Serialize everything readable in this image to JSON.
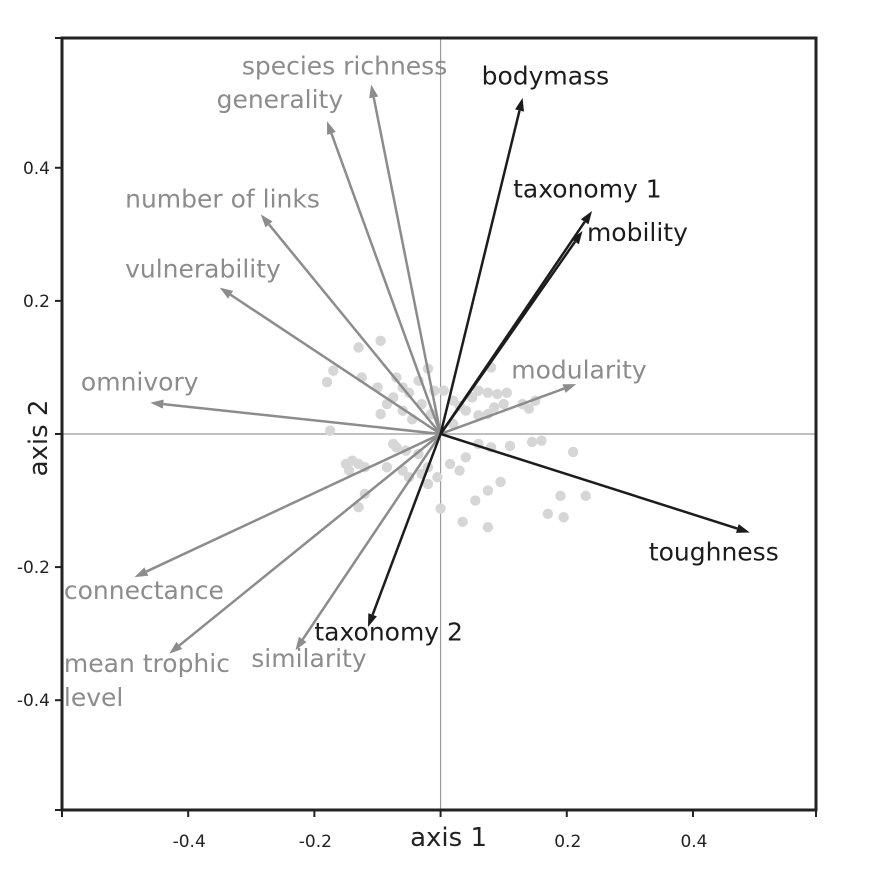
{
  "chart_data": {
    "type": "scatter",
    "xlabel": "axis 1",
    "ylabel": "axis 2",
    "xlim": [
      -0.6,
      0.595
    ],
    "ylim": [
      -0.565,
      0.595
    ],
    "xticks": [
      {
        "value": -0.4,
        "label": "-0.4"
      },
      {
        "value": -0.2,
        "label": "-0.2"
      },
      {
        "value": 0.2,
        "label": "0.2"
      },
      {
        "value": 0.4,
        "label": "0.4"
      }
    ],
    "yticks": [
      {
        "value": 0.4,
        "label": "0.4"
      },
      {
        "value": 0.2,
        "label": "0.2"
      },
      {
        "value": -0.2,
        "label": "-0.2"
      },
      {
        "value": -0.4,
        "label": "-0.4"
      }
    ],
    "colors": {
      "dark_vector": "#1c1c1c",
      "light_vector": "#8c8c8c",
      "points": "#d6d6d6",
      "origin_lines": "#9a9a9a",
      "frame": "#222222"
    },
    "vectors": [
      {
        "name": "bodymass",
        "x": 0.13,
        "y": 0.505,
        "tone": "dark",
        "label_lines": [
          "bodymass"
        ],
        "label_pos": [
          0.065,
          0.525
        ],
        "anchor": "start"
      },
      {
        "name": "taxonomy 1",
        "x": 0.24,
        "y": 0.335,
        "tone": "dark",
        "label_lines": [
          "taxonomy 1"
        ],
        "label_pos": [
          0.115,
          0.355
        ],
        "anchor": "start"
      },
      {
        "name": "mobility",
        "x": 0.225,
        "y": 0.305,
        "tone": "dark",
        "label_lines": [
          "mobility"
        ],
        "label_pos": [
          0.232,
          0.29
        ],
        "anchor": "start"
      },
      {
        "name": "toughness",
        "x": 0.49,
        "y": -0.148,
        "tone": "dark",
        "label_lines": [
          "toughness"
        ],
        "label_pos": [
          0.33,
          -0.19
        ],
        "anchor": "start"
      },
      {
        "name": "taxonomy 2",
        "x": -0.115,
        "y": -0.29,
        "tone": "dark",
        "label_lines": [
          "taxonomy 2"
        ],
        "label_pos": [
          -0.2,
          -0.31
        ],
        "anchor": "start"
      },
      {
        "name": "species richness",
        "x": -0.11,
        "y": 0.525,
        "tone": "light",
        "label_lines": [
          "species richness"
        ],
        "label_pos": [
          -0.315,
          0.54
        ],
        "anchor": "start"
      },
      {
        "name": "generality",
        "x": -0.18,
        "y": 0.47,
        "tone": "light",
        "label_lines": [
          "generality"
        ],
        "label_pos": [
          -0.355,
          0.49
        ],
        "anchor": "start"
      },
      {
        "name": "number of links",
        "x": -0.285,
        "y": 0.33,
        "tone": "light",
        "label_lines": [
          "number of links"
        ],
        "label_pos": [
          -0.5,
          0.34
        ],
        "anchor": "start"
      },
      {
        "name": "vulnerability",
        "x": -0.35,
        "y": 0.22,
        "tone": "light",
        "label_lines": [
          "vulnerability"
        ],
        "label_pos": [
          -0.5,
          0.235
        ],
        "anchor": "start"
      },
      {
        "name": "omnivory",
        "x": -0.46,
        "y": 0.047,
        "tone": "light",
        "label_lines": [
          "omnivory"
        ],
        "label_pos": [
          -0.57,
          0.065
        ],
        "anchor": "start"
      },
      {
        "name": "modularity",
        "x": 0.215,
        "y": 0.075,
        "tone": "light",
        "label_lines": [
          "modularity"
        ],
        "label_pos": [
          0.112,
          0.083
        ],
        "anchor": "start"
      },
      {
        "name": "connectance",
        "x": -0.485,
        "y": -0.215,
        "tone": "light",
        "label_lines": [
          "connectance"
        ],
        "label_pos": [
          -0.597,
          -0.248
        ],
        "anchor": "start"
      },
      {
        "name": "mean trophic level",
        "x": -0.43,
        "y": -0.33,
        "tone": "light",
        "label_lines": [
          "mean trophic",
          "level"
        ],
        "label_pos": [
          -0.597,
          -0.358
        ],
        "anchor": "start"
      },
      {
        "name": "similarity",
        "x": -0.23,
        "y": -0.325,
        "tone": "light",
        "label_lines": [
          "similarity"
        ],
        "label_pos": [
          -0.3,
          -0.35
        ],
        "anchor": "start"
      }
    ],
    "points": [
      [
        -0.13,
        0.13
      ],
      [
        -0.095,
        0.14
      ],
      [
        -0.17,
        0.095
      ],
      [
        -0.18,
        0.078
      ],
      [
        -0.125,
        0.085
      ],
      [
        -0.1,
        0.07
      ],
      [
        -0.07,
        0.085
      ],
      [
        -0.06,
        0.07
      ],
      [
        -0.075,
        0.055
      ],
      [
        -0.05,
        0.062
      ],
      [
        -0.02,
        0.098
      ],
      [
        -0.035,
        0.08
      ],
      [
        -0.01,
        0.065
      ],
      [
        -0.03,
        0.045
      ],
      [
        -0.085,
        0.045
      ],
      [
        -0.095,
        0.03
      ],
      [
        -0.06,
        0.035
      ],
      [
        -0.045,
        0.022
      ],
      [
        -0.015,
        0.03
      ],
      [
        0.005,
        0.065
      ],
      [
        0.02,
        0.05
      ],
      [
        0.03,
        0.042
      ],
      [
        0.04,
        0.035
      ],
      [
        0.05,
        0.055
      ],
      [
        0.06,
        0.065
      ],
      [
        0.075,
        0.062
      ],
      [
        0.08,
        0.1
      ],
      [
        0.09,
        0.06
      ],
      [
        0.1,
        0.045
      ],
      [
        0.105,
        0.062
      ],
      [
        0.085,
        0.04
      ],
      [
        0.075,
        0.03
      ],
      [
        0.06,
        0.028
      ],
      [
        0.13,
        0.045
      ],
      [
        0.15,
        0.05
      ],
      [
        0.14,
        0.038
      ],
      [
        0.02,
        0.015
      ],
      [
        -0.175,
        0.005
      ],
      [
        -0.075,
        -0.015
      ],
      [
        -0.07,
        -0.02
      ],
      [
        -0.055,
        -0.025
      ],
      [
        -0.035,
        -0.03
      ],
      [
        -0.02,
        -0.05
      ],
      [
        -0.14,
        -0.04
      ],
      [
        -0.15,
        -0.045
      ],
      [
        -0.13,
        -0.045
      ],
      [
        -0.12,
        -0.05
      ],
      [
        -0.145,
        -0.055
      ],
      [
        -0.085,
        -0.05
      ],
      [
        -0.06,
        -0.055
      ],
      [
        -0.05,
        -0.065
      ],
      [
        -0.03,
        -0.06
      ],
      [
        -0.02,
        -0.075
      ],
      [
        -0.005,
        -0.065
      ],
      [
        0.015,
        -0.045
      ],
      [
        0.03,
        -0.055
      ],
      [
        0.04,
        -0.035
      ],
      [
        0.06,
        -0.015
      ],
      [
        0.08,
        -0.02
      ],
      [
        0.11,
        -0.018
      ],
      [
        0.145,
        -0.012
      ],
      [
        0.16,
        -0.01
      ],
      [
        0.075,
        -0.085
      ],
      [
        0.095,
        -0.072
      ],
      [
        0.055,
        -0.1
      ],
      [
        0.035,
        -0.132
      ],
      [
        0.075,
        -0.14
      ],
      [
        0.0,
        -0.112
      ],
      [
        -0.12,
        -0.09
      ],
      [
        -0.13,
        -0.11
      ],
      [
        0.21,
        -0.027
      ],
      [
        0.19,
        -0.093
      ],
      [
        0.23,
        -0.093
      ],
      [
        0.17,
        -0.12
      ],
      [
        0.195,
        -0.125
      ]
    ]
  }
}
